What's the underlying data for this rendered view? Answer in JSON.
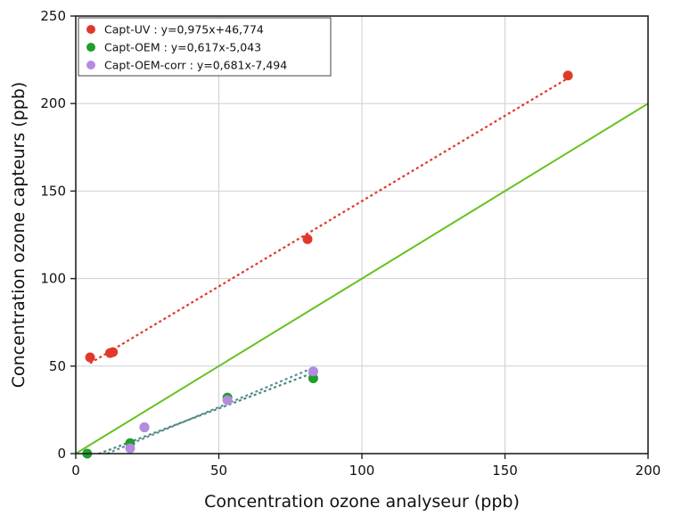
{
  "chart_data": {
    "type": "scatter",
    "xlabel": "Concentration ozone analyseur (ppb)",
    "ylabel": "Concentration ozone capteurs (ppb)",
    "xlim": [
      0,
      200
    ],
    "ylim": [
      0,
      250
    ],
    "xticks": [
      "0",
      "50",
      "100",
      "150",
      "200"
    ],
    "yticks": [
      "0",
      "50",
      "100",
      "150",
      "200",
      "250"
    ],
    "grid": true,
    "legend_position": "top-left",
    "reference_line": {
      "slope": 1,
      "intercept": 0,
      "color": "#66c21f"
    },
    "series": [
      {
        "name": "Capt-UV : y=0,975x+46,774",
        "color": "#e0392b",
        "points": [
          [
            5,
            55
          ],
          [
            12,
            57.5
          ],
          [
            13,
            58
          ],
          [
            81,
            122.5
          ],
          [
            172,
            216
          ]
        ],
        "fit": {
          "slope": 0.975,
          "intercept": 46.774,
          "x_range": [
            5,
            172
          ],
          "color": "#e0392b"
        }
      },
      {
        "name": "Capt-OEM : y=0,617x-5,043",
        "color": "#1f9e2c",
        "points": [
          [
            4,
            0
          ],
          [
            19,
            6
          ],
          [
            24,
            15
          ],
          [
            53,
            32
          ],
          [
            83,
            43
          ]
        ],
        "fit": {
          "slope": 0.617,
          "intercept": -5.043,
          "x_range": [
            8,
            83
          ],
          "color": "#4a8a7a"
        }
      },
      {
        "name": "Capt-OEM-corr : y=0,681x-7,494",
        "color": "#b48be0",
        "points": [
          [
            19,
            3
          ],
          [
            24,
            15
          ],
          [
            53,
            30.5
          ],
          [
            83,
            47
          ]
        ],
        "fit": {
          "slope": 0.681,
          "intercept": -7.494,
          "x_range": [
            11,
            83
          ],
          "color": "#5f8c9c"
        }
      }
    ]
  }
}
